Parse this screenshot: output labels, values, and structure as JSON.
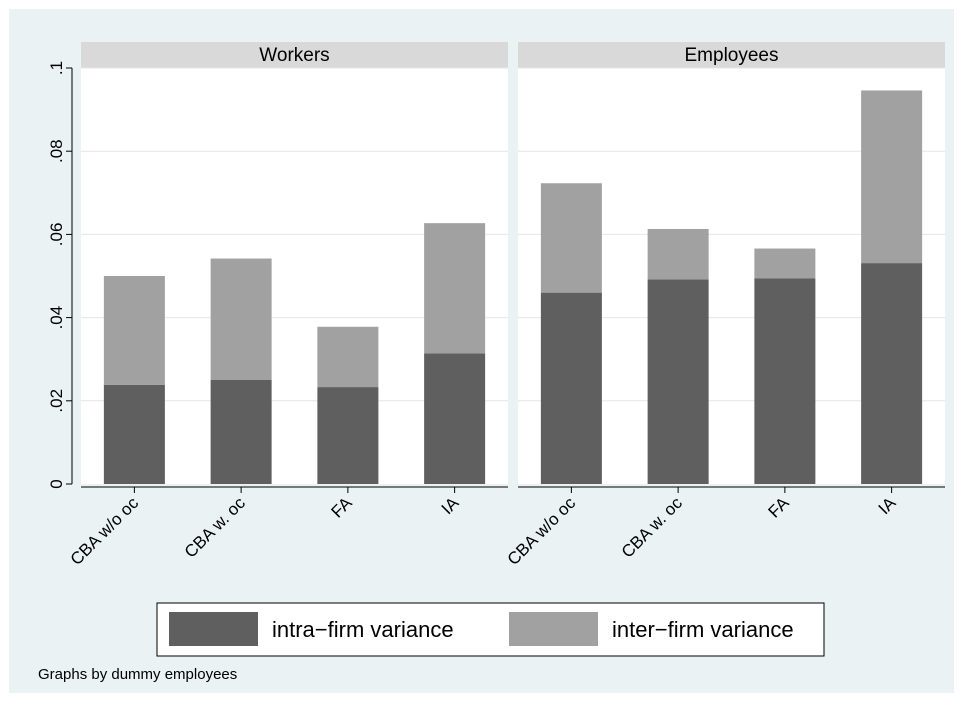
{
  "chart_data": {
    "type": "bar",
    "stacked": true,
    "panels": [
      {
        "title": "Workers",
        "categories": [
          "CBA w/o oc",
          "CBA w. oc",
          "FA",
          "IA"
        ],
        "series": [
          {
            "name": "intra−firm variance",
            "values": [
              0.0238,
              0.025,
              0.0233,
              0.0314
            ]
          },
          {
            "name": "inter−firm variance",
            "values": [
              0.0262,
              0.0292,
              0.0145,
              0.0313
            ]
          }
        ]
      },
      {
        "title": "Employees",
        "categories": [
          "CBA w/o oc",
          "CBA w. oc",
          "FA",
          "IA"
        ],
        "series": [
          {
            "name": "intra−firm variance",
            "values": [
              0.046,
              0.0492,
              0.0494,
              0.0531
            ]
          },
          {
            "name": "inter−firm variance",
            "values": [
              0.0263,
              0.0121,
              0.0072,
              0.0415
            ]
          }
        ]
      }
    ],
    "yticks": [
      "0",
      ".02",
      ".04",
      ".06",
      ".08",
      ".1"
    ],
    "ytick_values": [
      0,
      0.02,
      0.04,
      0.06,
      0.08,
      0.1
    ],
    "ylim": [
      0,
      0.1
    ],
    "grid": true,
    "legend": {
      "position": "bottom",
      "entries": [
        "intra−firm variance",
        "inter−firm variance"
      ]
    },
    "note": "Graphs by dummy employees",
    "colors": {
      "background": "#eaf2f3",
      "plot": "#ffffff",
      "strip": "#d9d9d9",
      "intra": "#5f5f5f",
      "inter": "#a1a1a1"
    }
  }
}
